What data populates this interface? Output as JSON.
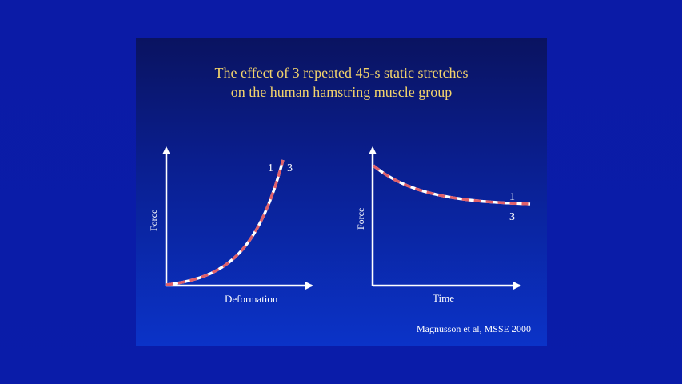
{
  "slide": {
    "title_line1": "The effect of 3 repeated 45-s static stretches",
    "title_line2": "on the human hamstring muscle group",
    "citation": "Magnusson et al, MSSE 2000"
  },
  "colors": {
    "background": "#0a1aa8",
    "title": "#f2d36b",
    "text": "#ffffff",
    "curve_dash": "#e0606a",
    "curve_base": "#ffffff"
  },
  "chart_data": [
    {
      "type": "line",
      "xlabel": "Deformation",
      "ylabel": "Force",
      "grid": false,
      "series": [
        {
          "name": "1",
          "shape": "exponential-rise"
        },
        {
          "name": "3",
          "shape": "exponential-rise"
        }
      ],
      "curve_labels": [
        "1",
        "3"
      ]
    },
    {
      "type": "line",
      "xlabel": "Time",
      "ylabel": "Force",
      "grid": false,
      "series": [
        {
          "name": "1",
          "shape": "exponential-decay"
        },
        {
          "name": "3",
          "shape": "exponential-decay"
        }
      ],
      "curve_labels": [
        "1",
        "3"
      ]
    }
  ]
}
